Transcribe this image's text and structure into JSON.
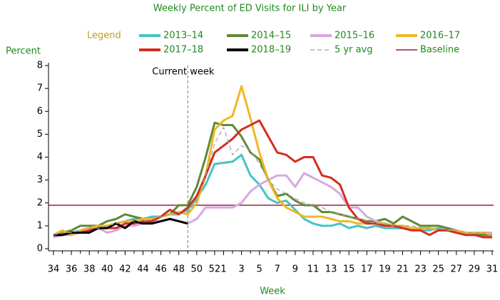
{
  "chart_data": {
    "type": "line",
    "title": "Weekly Percent of ED Visits for ILI by Year",
    "y_label": "Percent",
    "x_label": "Week",
    "legend_title": "Legend",
    "categories": [
      "34",
      null,
      "36",
      null,
      "38",
      null,
      "40",
      null,
      "42",
      null,
      "44",
      null,
      "46",
      null,
      "48",
      null,
      "50",
      null,
      "52",
      "1",
      null,
      "3",
      null,
      "5",
      null,
      "7",
      null,
      "9",
      null,
      "11",
      null,
      "13",
      null,
      "15",
      null,
      "17",
      null,
      "19",
      null,
      "21",
      null,
      "23",
      null,
      "25",
      null,
      "27",
      null,
      "29",
      null,
      "31"
    ],
    "series": [
      {
        "name": "2013–14",
        "color": "#44c4c4",
        "values": [
          0.6,
          0.7,
          0.7,
          0.8,
          0.9,
          0.9,
          1.0,
          1.1,
          1.2,
          1.3,
          1.3,
          1.4,
          1.4,
          1.5,
          1.5,
          1.7,
          2.2,
          2.8,
          3.7,
          3.75,
          3.8,
          4.1,
          3.2,
          2.8,
          2.2,
          2.0,
          2.1,
          1.7,
          1.3,
          1.1,
          1.0,
          1.0,
          1.1,
          0.9,
          1.0,
          0.9,
          1.0,
          0.9,
          0.9,
          0.9,
          0.9,
          0.8,
          0.8,
          0.9,
          0.8,
          0.7,
          0.7,
          0.6,
          0.6,
          0.6
        ]
      },
      {
        "name": "2014–15",
        "color": "#5e8a38",
        "values": [
          0.6,
          0.7,
          0.8,
          1.0,
          1.0,
          1.0,
          1.2,
          1.3,
          1.5,
          1.4,
          1.3,
          1.3,
          1.4,
          1.5,
          1.9,
          1.9,
          2.7,
          4.0,
          5.5,
          5.4,
          5.4,
          4.9,
          4.2,
          3.9,
          3.0,
          2.3,
          2.4,
          2.1,
          1.9,
          1.9,
          1.6,
          1.6,
          1.5,
          1.4,
          1.3,
          1.2,
          1.2,
          1.3,
          1.1,
          1.4,
          1.2,
          1.0,
          1.0,
          1.0,
          0.9,
          0.8,
          0.7,
          0.7,
          0.6,
          0.6
        ]
      },
      {
        "name": "2015–16",
        "color": "#d8a8e2",
        "values": [
          0.5,
          0.6,
          0.6,
          0.7,
          0.8,
          0.9,
          0.7,
          0.8,
          1.0,
          1.0,
          1.1,
          1.2,
          1.2,
          1.3,
          1.2,
          1.1,
          1.3,
          1.8,
          1.8,
          1.8,
          1.8,
          2.0,
          2.5,
          2.8,
          3.0,
          3.2,
          3.2,
          2.7,
          3.3,
          3.1,
          2.9,
          2.7,
          2.4,
          1.8,
          1.8,
          1.4,
          1.2,
          1.1,
          1.0,
          1.0,
          0.9,
          0.9,
          0.9,
          0.8,
          0.8,
          0.7,
          0.7,
          0.7,
          0.7,
          0.7
        ]
      },
      {
        "name": "2016–17",
        "color": "#f0b824",
        "values": [
          0.6,
          0.8,
          0.6,
          0.8,
          0.9,
          1.0,
          1.0,
          1.1,
          1.2,
          1.2,
          1.3,
          1.3,
          1.4,
          1.5,
          1.6,
          1.5,
          2.0,
          3.2,
          5.2,
          5.6,
          5.8,
          7.1,
          5.7,
          4.2,
          3.0,
          2.2,
          1.8,
          1.6,
          1.4,
          1.4,
          1.4,
          1.3,
          1.2,
          1.2,
          1.1,
          1.1,
          1.1,
          1.1,
          1.0,
          1.0,
          0.9,
          0.9,
          0.9,
          0.8,
          0.8,
          0.8,
          0.7,
          0.7,
          0.7,
          0.6
        ]
      },
      {
        "name": "2017–18",
        "color": "#d42e1e",
        "values": [
          0.6,
          0.6,
          0.7,
          0.7,
          0.8,
          0.9,
          0.9,
          0.9,
          1.1,
          1.1,
          1.2,
          1.2,
          1.4,
          1.7,
          1.5,
          1.8,
          2.3,
          3.2,
          4.2,
          4.5,
          4.8,
          5.2,
          5.4,
          5.6,
          4.9,
          4.2,
          4.1,
          3.8,
          4.0,
          4.0,
          3.2,
          3.1,
          2.8,
          1.8,
          1.3,
          1.1,
          1.1,
          1.0,
          1.0,
          0.9,
          0.8,
          0.8,
          0.6,
          0.8,
          0.8,
          0.7,
          0.6,
          0.6,
          0.5,
          0.5
        ]
      },
      {
        "name": "2018–19",
        "color": "#000000",
        "values": [
          0.6,
          0.6,
          0.7,
          0.7,
          0.7,
          0.9,
          0.9,
          1.1,
          0.9,
          1.2,
          1.1,
          1.1,
          1.2,
          1.3,
          1.2,
          1.1,
          null,
          null,
          null,
          null,
          null,
          null,
          null,
          null,
          null,
          null,
          null,
          null,
          null,
          null,
          null,
          null,
          null,
          null,
          null,
          null,
          null,
          null,
          null,
          null,
          null,
          null,
          null,
          null,
          null,
          null,
          null,
          null,
          null,
          null
        ]
      },
      {
        "name": "5 yr avg",
        "color": "#a0a0a0",
        "dashed": true,
        "values": [
          0.6,
          0.7,
          0.7,
          0.8,
          0.9,
          0.9,
          1.0,
          1.1,
          1.2,
          1.2,
          1.2,
          1.3,
          1.4,
          1.5,
          1.5,
          1.6,
          2.1,
          3.2,
          4.6,
          5.3,
          4.1,
          4.5,
          4.3,
          3.7,
          3.0,
          2.6,
          2.4,
          2.2,
          2.0,
          1.9,
          1.8,
          1.6,
          1.5,
          1.4,
          1.3,
          1.2,
          1.1,
          1.1,
          1.0,
          1.0,
          1.0,
          0.9,
          0.9,
          0.9,
          0.8,
          0.8,
          0.7,
          0.7,
          0.7,
          0.6
        ]
      }
    ],
    "baseline": {
      "name": "Baseline",
      "value": 1.9,
      "color": "#a8183c"
    },
    "annotation": {
      "text": "Current week",
      "x": 15
    },
    "ylim": [
      0,
      8
    ],
    "yticks": [
      0,
      1,
      2,
      3,
      4,
      5,
      6,
      7,
      8
    ]
  }
}
